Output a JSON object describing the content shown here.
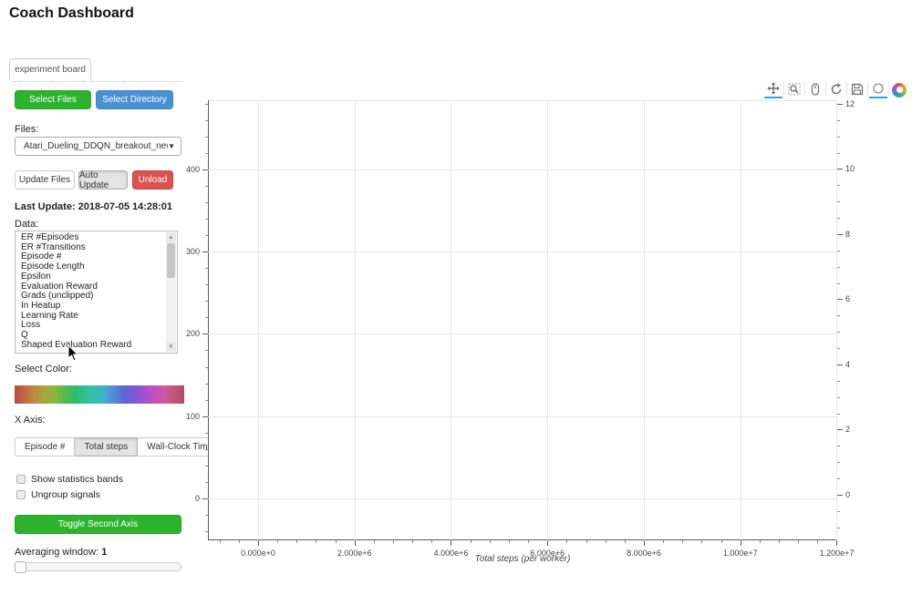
{
  "page": {
    "title": "Coach Dashboard"
  },
  "tabs": [
    {
      "label": "experiment board"
    }
  ],
  "file_controls": {
    "select_files_label": "Select Files",
    "select_directory_label": "Select Directory",
    "files_label": "Files:",
    "selected_file": "Atari_Dueling_DDQN_breakout_new",
    "update_files_label": "Update Files",
    "auto_update_label": "Auto Update",
    "auto_update_active": true,
    "unload_label": "Unload",
    "last_update": "Last Update: 2018-07-05 14:28:01"
  },
  "data_panel": {
    "label": "Data:",
    "items": [
      "ER #Episodes",
      "ER #Transitions",
      "Episode #",
      "Episode Length",
      "Epsilon",
      "Evaluation Reward",
      "Grads (unclipped)",
      "In Heatup",
      "Learning Rate",
      "Loss",
      "Q",
      "Shaped Evaluation Reward"
    ]
  },
  "color_panel": {
    "label": "Select Color:",
    "gradient_colors": [
      "#b34a47",
      "#bc6a45",
      "#bd8b41",
      "#a9a43c",
      "#8ab83e",
      "#55bb4d",
      "#2fbd68",
      "#2fc08e",
      "#36bfae",
      "#44adc9",
      "#5489d4",
      "#5e66d6",
      "#7e57d2",
      "#a450cd",
      "#c251c2",
      "#cc589e",
      "#c25379",
      "#b34a5e"
    ]
  },
  "x_axis_panel": {
    "label": "X Axis:",
    "options": [
      "Episode #",
      "Total steps",
      "Wall-Clock Time"
    ],
    "selected": "Total steps"
  },
  "checkboxes": [
    {
      "label": "Show statistics bands",
      "checked": false
    },
    {
      "label": "Ungroup signals",
      "checked": false
    }
  ],
  "toggle_second_axis_label": "Toggle Second Axis",
  "averaging": {
    "label": "Averaging window:",
    "value": "1"
  },
  "toolbar": {
    "active_color": "#36a2dd",
    "tools": [
      {
        "name": "pan",
        "active": true
      },
      {
        "name": "box-zoom",
        "active": false
      },
      {
        "name": "wheel-zoom",
        "active": false
      },
      {
        "name": "reset",
        "active": false
      },
      {
        "name": "save",
        "active": false
      },
      {
        "name": "hover",
        "active": true
      },
      {
        "name": "bokeh-logo",
        "active": false
      }
    ]
  },
  "colors": {
    "green_button": "#2db32d",
    "blue_button": "#4a90d5",
    "red_button": "#d9534f",
    "grid": "#e7e7e7"
  },
  "chart_data": {
    "type": "line",
    "series": [],
    "title": "",
    "xlabel": "Total steps (per worker)",
    "grid": true,
    "x_range": [
      -1040000,
      12010000
    ],
    "x_minor_step": 400000,
    "x_ticks": [
      {
        "value": 0,
        "label": "0.000e+0"
      },
      {
        "value": 2000000,
        "label": "2.000e+6"
      },
      {
        "value": 4000000,
        "label": "4.000e+6"
      },
      {
        "value": 6000000,
        "label": "6.000e+6"
      },
      {
        "value": 8000000,
        "label": "8.000e+6"
      },
      {
        "value": 10000000,
        "label": "1.000e+7"
      },
      {
        "value": 12000000,
        "label": "1.200e+7"
      }
    ],
    "y_left": {
      "ticks": [
        0,
        100,
        200,
        300,
        400
      ],
      "range": [
        -51,
        484
      ],
      "minor_step": 20
    },
    "y_right": {
      "ticks": [
        0,
        2,
        4,
        6,
        8,
        10,
        12
      ],
      "range": [
        -1.4,
        12.11
      ],
      "minor_step": 0.5
    }
  }
}
